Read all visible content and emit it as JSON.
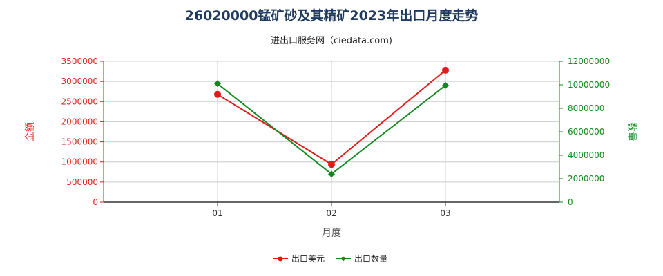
{
  "title": "26020000锰矿砂及其精矿2023年出口月度走势",
  "subtitle": "进出口服务网（ciedata.com)",
  "colors": {
    "value": "#e31a1c",
    "quantity": "#12881f",
    "grid": "#cccccc",
    "axis": "#333333"
  },
  "chart_data": {
    "type": "line",
    "categories": [
      "01",
      "02",
      "03"
    ],
    "xlabel": "月度",
    "y_left_label": "金额",
    "y_right_label": "数量",
    "y_left_lim": [
      0,
      3500000
    ],
    "y_left_ticks": [
      "0",
      "500000",
      "1000000",
      "1500000",
      "2000000",
      "2500000",
      "3000000",
      "3500000"
    ],
    "y_right_lim": [
      0,
      12000000
    ],
    "y_right_ticks": [
      "0",
      "2000000",
      "4000000",
      "6000000",
      "8000000",
      "10000000",
      "12000000"
    ],
    "grid": true,
    "legend_position": "bottom-center",
    "series": [
      {
        "name": "出口美元",
        "axis": "left",
        "color": "#e31a1c",
        "marker": "circle",
        "values": [
          2680000,
          940000,
          3280000
        ]
      },
      {
        "name": "出口数量",
        "axis": "right",
        "color": "#12881f",
        "marker": "diamond",
        "values": [
          10100000,
          2400000,
          9950000
        ]
      }
    ]
  }
}
